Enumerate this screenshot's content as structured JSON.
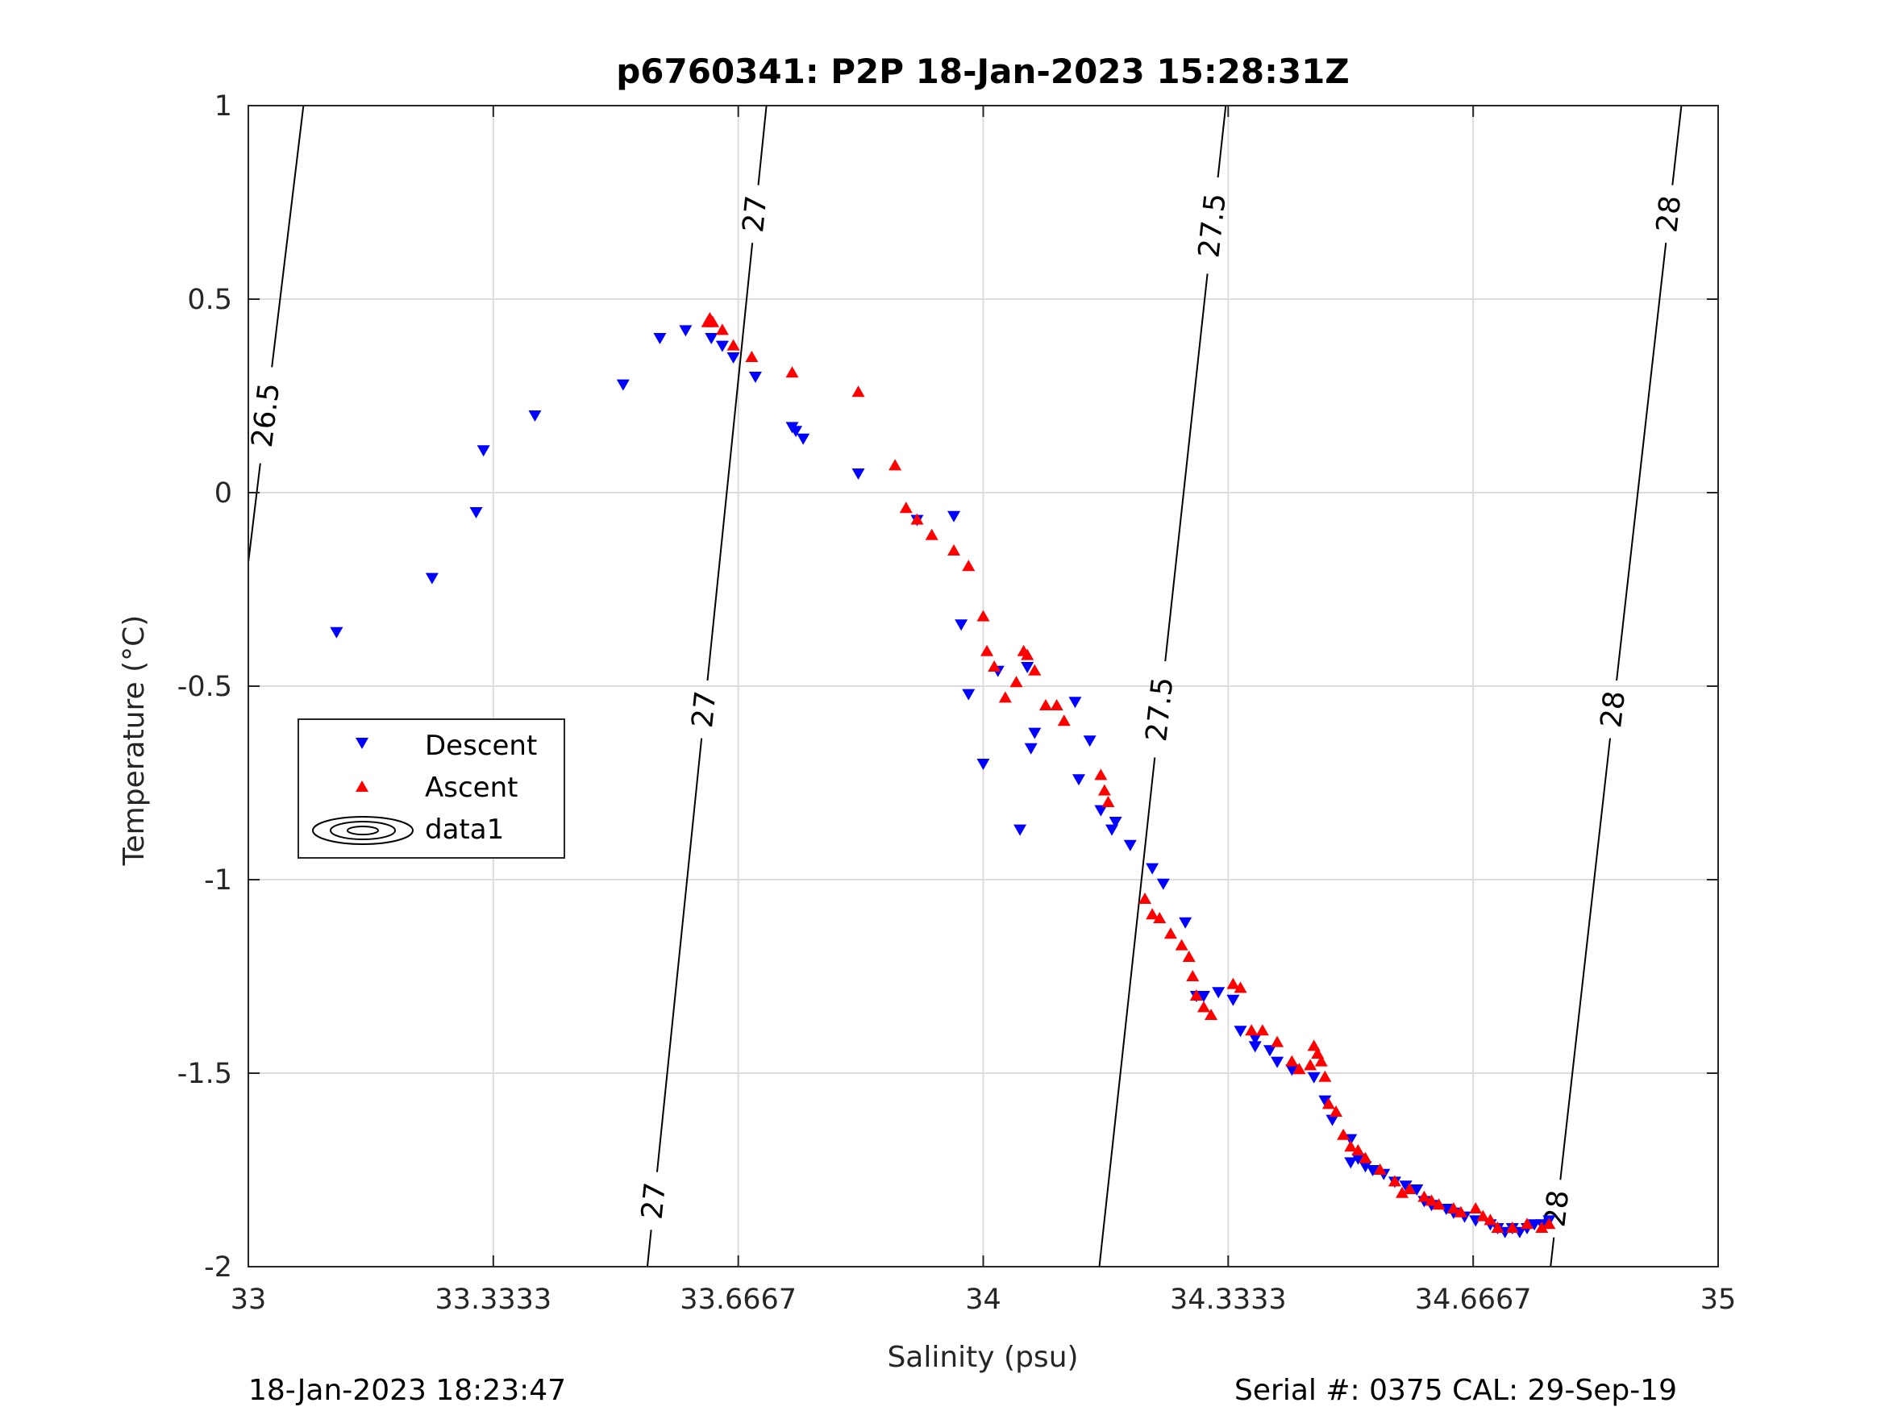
{
  "chart_data": {
    "type": "scatter",
    "title": "p6760341: P2P 18-Jan-2023 15:28:31Z",
    "xlabel": "Salinity (psu)",
    "ylabel": "Temperature (°C)",
    "xlim": [
      33,
      35
    ],
    "ylim": [
      -2,
      1
    ],
    "xticks": [
      "33",
      "33.3333",
      "33.6667",
      "34",
      "34.3333",
      "34.6667",
      "35"
    ],
    "yticks": [
      "-2",
      "-1.5",
      "-1",
      "-0.5",
      "0",
      "0.5",
      "1"
    ],
    "grid": true,
    "legend": {
      "placement": "middle-left",
      "entries": [
        "Descent",
        "Ascent",
        "data1"
      ]
    },
    "colors": {
      "descent": "#0000ff",
      "ascent": "#ff0000",
      "contour": "#000000"
    },
    "series": [
      {
        "name": "Descent",
        "marker": "triangle-down",
        "x": [
          33.12,
          33.25,
          33.31,
          33.32,
          33.39,
          33.51,
          33.56,
          33.595,
          33.63,
          33.645,
          33.66,
          33.69,
          33.74,
          33.745,
          33.755,
          33.83,
          33.91,
          33.96,
          33.97,
          33.98,
          34.0,
          34.02,
          34.05,
          34.06,
          34.065,
          34.07,
          34.125,
          34.13,
          34.145,
          34.16,
          34.175,
          34.18,
          34.2,
          34.23,
          34.245,
          34.275,
          34.29,
          34.3,
          34.32,
          34.34,
          34.35,
          34.37,
          34.37,
          34.39,
          34.4,
          34.42,
          34.45,
          34.465,
          34.475,
          34.5,
          34.5,
          34.51,
          34.52,
          34.53,
          34.545,
          34.56,
          34.575,
          34.59,
          34.6,
          34.61,
          34.63,
          34.64,
          34.655,
          34.67,
          34.69,
          34.7,
          34.71,
          34.72,
          34.73,
          34.74,
          34.75,
          34.76,
          34.77
        ],
        "y": [
          -0.36,
          -0.22,
          -0.05,
          0.11,
          0.2,
          0.28,
          0.4,
          0.42,
          0.4,
          0.38,
          0.35,
          0.3,
          0.17,
          0.16,
          0.14,
          0.05,
          -0.07,
          -0.06,
          -0.34,
          -0.52,
          -0.7,
          -0.46,
          -0.87,
          -0.45,
          -0.66,
          -0.62,
          -0.54,
          -0.74,
          -0.64,
          -0.82,
          -0.87,
          -0.85,
          -0.91,
          -0.97,
          -1.01,
          -1.11,
          -1.3,
          -1.3,
          -1.29,
          -1.31,
          -1.39,
          -1.41,
          -1.43,
          -1.44,
          -1.47,
          -1.49,
          -1.51,
          -1.57,
          -1.62,
          -1.67,
          -1.73,
          -1.72,
          -1.74,
          -1.75,
          -1.76,
          -1.78,
          -1.79,
          -1.8,
          -1.83,
          -1.84,
          -1.85,
          -1.86,
          -1.87,
          -1.88,
          -1.89,
          -1.9,
          -1.91,
          -1.9,
          -1.91,
          -1.9,
          -1.89,
          -1.89,
          -1.88
        ]
      },
      {
        "name": "Ascent",
        "marker": "triangle-up",
        "x": [
          33.625,
          33.628,
          33.632,
          33.645,
          33.66,
          33.685,
          33.74,
          33.83,
          33.88,
          33.895,
          33.91,
          33.93,
          33.96,
          33.98,
          34.0,
          34.005,
          34.015,
          34.03,
          34.045,
          34.055,
          34.06,
          34.07,
          34.085,
          34.1,
          34.11,
          34.16,
          34.165,
          34.17,
          34.22,
          34.23,
          34.24,
          34.255,
          34.27,
          34.28,
          34.285,
          34.29,
          34.3,
          34.31,
          34.34,
          34.35,
          34.365,
          34.38,
          34.4,
          34.42,
          34.43,
          34.445,
          34.45,
          34.455,
          34.46,
          34.465,
          34.47,
          34.48,
          34.49,
          34.5,
          34.51,
          34.52,
          34.54,
          34.56,
          34.57,
          34.58,
          34.6,
          34.61,
          34.62,
          34.64,
          34.65,
          34.67,
          34.68,
          34.69,
          34.7,
          34.72,
          34.74,
          34.76,
          34.77
        ],
        "y": [
          0.44,
          0.45,
          0.44,
          0.42,
          0.38,
          0.35,
          0.31,
          0.26,
          0.07,
          -0.04,
          -0.07,
          -0.11,
          -0.15,
          -0.19,
          -0.32,
          -0.41,
          -0.45,
          -0.53,
          -0.49,
          -0.41,
          -0.42,
          -0.46,
          -0.55,
          -0.55,
          -0.59,
          -0.73,
          -0.77,
          -0.8,
          -1.05,
          -1.09,
          -1.1,
          -1.14,
          -1.17,
          -1.2,
          -1.25,
          -1.3,
          -1.33,
          -1.35,
          -1.27,
          -1.28,
          -1.39,
          -1.39,
          -1.42,
          -1.47,
          -1.49,
          -1.48,
          -1.43,
          -1.45,
          -1.47,
          -1.51,
          -1.58,
          -1.6,
          -1.66,
          -1.69,
          -1.7,
          -1.72,
          -1.75,
          -1.78,
          -1.81,
          -1.8,
          -1.82,
          -1.83,
          -1.84,
          -1.85,
          -1.86,
          -1.85,
          -1.87,
          -1.88,
          -1.9,
          -1.9,
          -1.89,
          -1.9,
          -1.89
        ]
      }
    ],
    "contours": [
      {
        "label": "26.5",
        "x_top": 33.075,
        "x_bottom": 33.0,
        "y_bottom": -0.18,
        "labels_at_y": [
          0.2
        ]
      },
      {
        "label": "27",
        "x_top": 33.705,
        "x_bottom": 33.543,
        "labels_at_y": [
          0.72,
          -0.56,
          -1.83
        ]
      },
      {
        "label": "27.5",
        "x_top": 34.33,
        "x_bottom": 34.158,
        "labels_at_y": [
          0.69,
          -0.56
        ]
      },
      {
        "label": "28",
        "x_top": 34.95,
        "x_bottom": 34.772,
        "labels_at_y": [
          0.72,
          -0.56,
          -1.85
        ]
      }
    ]
  },
  "footer": {
    "left": "18-Jan-2023 18:23:47",
    "right": "Serial #: 0375  CAL: 29-Sep-19"
  }
}
